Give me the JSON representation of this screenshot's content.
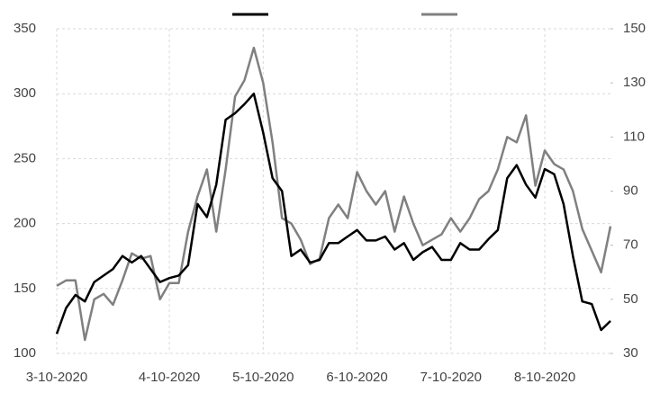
{
  "chart_data": {
    "type": "line",
    "categories": [
      "3-10-2020",
      null,
      null,
      null,
      null,
      null,
      null,
      null,
      null,
      null,
      null,
      null,
      "4-10-2020",
      null,
      null,
      null,
      null,
      null,
      null,
      null,
      null,
      null,
      "5-10-2020",
      null,
      null,
      null,
      null,
      null,
      null,
      null,
      null,
      null,
      "6-10-2020",
      null,
      null,
      null,
      null,
      null,
      null,
      null,
      null,
      null,
      "7-10-2020",
      null,
      null,
      null,
      null,
      null,
      null,
      null,
      null,
      null,
      "8-10-2020",
      null,
      null,
      null,
      null,
      null,
      null,
      null
    ],
    "series": [
      {
        "color": "#000000",
        "values": [
          115,
          135,
          145,
          140,
          155,
          160,
          165,
          175,
          170,
          175,
          165,
          155,
          158,
          160,
          168,
          215,
          205,
          230,
          280,
          285,
          292,
          300,
          270,
          235,
          225,
          175,
          180,
          170,
          172,
          185,
          185,
          190,
          195,
          187,
          187,
          190,
          180,
          185,
          172,
          178,
          182,
          172,
          172,
          185,
          180,
          180,
          188,
          195,
          235,
          245,
          230,
          220,
          242,
          238,
          215,
          175,
          140,
          138,
          118,
          125
        ]
      },
      {
        "color": "#808080",
        "axis": "y2",
        "values": [
          55,
          57,
          57,
          35,
          50,
          52,
          48,
          57,
          67,
          65,
          66,
          50,
          56,
          56,
          75,
          88,
          98,
          75,
          98,
          125,
          131,
          143,
          130,
          108,
          80,
          78,
          72,
          63,
          65,
          80,
          85,
          80,
          97,
          90,
          85,
          90,
          75,
          88,
          78,
          70,
          72,
          74,
          80,
          75,
          80,
          87,
          90,
          98,
          110,
          108,
          118,
          92,
          105,
          100,
          98,
          90,
          76,
          68,
          60,
          77
        ]
      }
    ],
    "ylim": [
      100,
      350
    ],
    "yticks": [
      100,
      150,
      200,
      250,
      300,
      350
    ],
    "y2lim": [
      30,
      150
    ],
    "y2ticks": [
      30,
      50,
      70,
      90,
      110,
      130,
      150
    ],
    "grid": true
  }
}
